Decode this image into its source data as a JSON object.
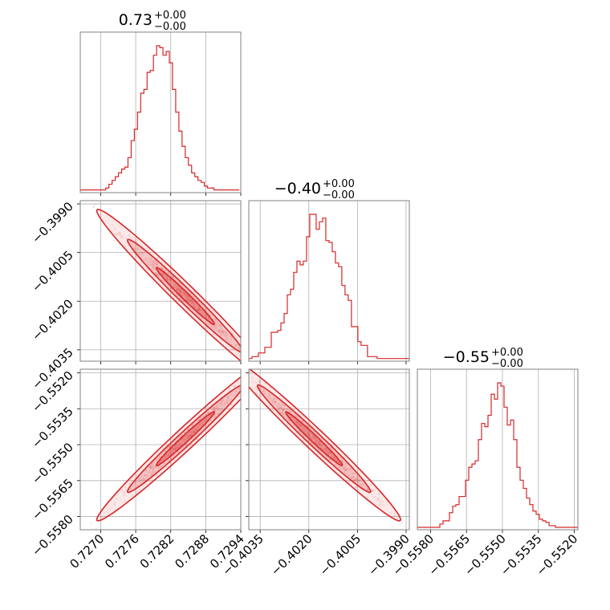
{
  "chart_data": {
    "type": "corner",
    "grid": true,
    "colors": {
      "line": "#d62728",
      "grid": "#b0b0b0",
      "frame": "#808080"
    },
    "parameters": [
      {
        "value": "0.73",
        "upper": "+0.00",
        "lower": "−0.00"
      },
      {
        "value": "−0.40",
        "upper": "+0.00",
        "lower": "−0.00"
      },
      {
        "value": "−0.55",
        "upper": "+0.00",
        "lower": "−0.00"
      }
    ],
    "ranges": [
      [
        0.72665,
        0.7294
      ],
      [
        -0.40385,
        -0.3989
      ],
      [
        -0.55855,
        -0.55185
      ]
    ],
    "ticks": [
      {
        "values": [
          0.727,
          0.7276,
          0.7282,
          0.7288,
          0.7294
        ],
        "labels": [
          "0.7270",
          "0.7276",
          "0.7282",
          "0.7288",
          "0.7294"
        ]
      },
      {
        "values": [
          -0.4035,
          -0.402,
          -0.4005,
          -0.399
        ],
        "labels": [
          "−0.4035",
          "−0.4020",
          "−0.4005",
          "−0.3990"
        ]
      },
      {
        "values": [
          -0.558,
          -0.5565,
          -0.555,
          -0.5535,
          -0.552
        ],
        "labels": [
          "−0.5580",
          "−0.5565",
          "−0.5550",
          "−0.5535",
          "−0.5520"
        ]
      }
    ],
    "histograms": [
      {
        "param": 0,
        "edges_start": 0.72665,
        "bin_width": 5.45e-05,
        "counts": [
          1,
          1,
          1,
          1,
          1,
          1,
          1,
          1,
          2,
          4,
          6,
          8,
          10,
          12,
          13,
          18,
          27,
          33,
          42,
          52,
          54,
          63,
          64,
          72,
          77,
          76,
          72,
          74,
          68,
          54,
          42,
          32,
          24,
          18,
          14,
          10,
          8,
          6,
          5,
          3,
          2,
          2,
          1,
          1,
          1,
          1,
          1,
          1,
          1,
          1
        ]
      },
      {
        "param": 1,
        "edges_start": -0.40385,
        "bin_width": 9.89e-05,
        "counts": [
          1,
          2,
          2,
          4,
          4,
          7,
          7,
          15,
          15,
          16,
          20,
          25,
          35,
          38,
          47,
          53,
          51,
          53,
          66,
          78,
          78,
          70,
          74,
          76,
          64,
          63,
          58,
          52,
          50,
          40,
          35,
          32,
          18,
          18,
          10,
          8,
          8,
          2,
          2,
          2,
          1,
          1,
          1,
          1,
          1,
          1,
          1,
          1,
          1,
          1
        ]
      },
      {
        "param": 2,
        "edges_start": -0.55855,
        "bin_width": 0.000134,
        "counts": [
          1,
          1,
          1,
          1,
          1,
          1,
          1,
          3,
          5,
          5,
          10,
          14,
          15,
          20,
          20,
          30,
          38,
          40,
          42,
          55,
          65,
          63,
          70,
          83,
          80,
          90,
          88,
          75,
          64,
          67,
          55,
          38,
          30,
          25,
          19,
          15,
          11,
          9,
          6,
          5,
          4,
          2,
          2,
          1,
          1,
          1,
          1,
          1,
          1,
          1
        ]
      }
    ],
    "pairs": [
      {
        "x_param": 0,
        "y_param": 1,
        "mean": [
          0.72845,
          -0.40184
        ],
        "sd": [
          0.0005,
          0.00088
        ],
        "corr": -0.985
      },
      {
        "x_param": 0,
        "y_param": 2,
        "mean": [
          0.72845,
          -0.55475
        ],
        "sd": [
          0.0005,
          0.00113
        ],
        "corr": 0.985
      },
      {
        "x_param": 1,
        "y_param": 2,
        "mean": [
          -0.40184,
          -0.55475
        ],
        "sd": [
          0.00088,
          0.00113
        ],
        "corr": -0.985
      }
    ],
    "contour_levels": [
      0.39,
      0.86,
      0.99
    ]
  }
}
